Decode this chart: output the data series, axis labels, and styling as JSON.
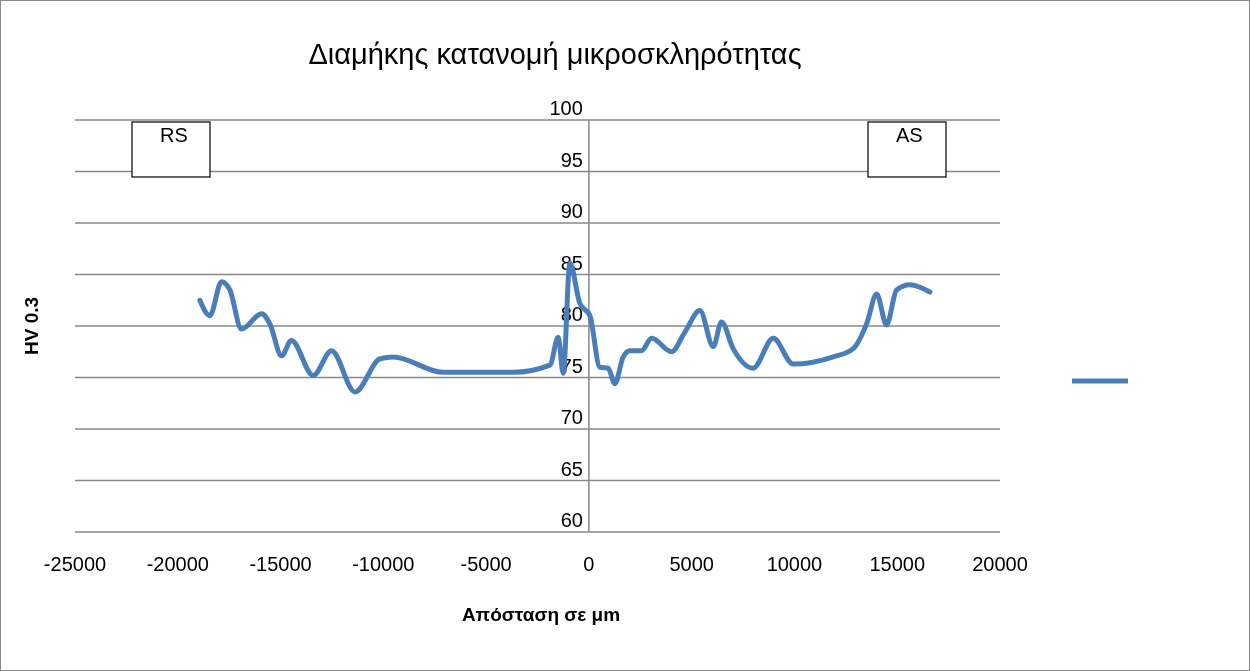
{
  "chart_data": {
    "type": "line",
    "title": "Διαμήκης κατανομή μικροσκληρότητας",
    "xlabel": "Απόσταση σε μm",
    "ylabel": "HV 0.3",
    "annotations": [
      "RS",
      "AS"
    ],
    "xlim": [
      -25000,
      20000
    ],
    "xticks": [
      -25000,
      -20000,
      -15000,
      -10000,
      -5000,
      0,
      5000,
      10000,
      15000,
      20000
    ],
    "ylim": [
      60,
      100
    ],
    "yticks": [
      60,
      65,
      70,
      75,
      80,
      85,
      90,
      95,
      100
    ],
    "grid": "y",
    "line_style": "solid",
    "marker": "none",
    "series": [
      {
        "color": "#4a7ebb",
        "x": [
          -18925,
          -18440,
          -17870,
          -17465,
          -16900,
          -15920,
          -15520,
          -14950,
          -14470,
          -13410,
          -12520,
          -11380,
          -10170,
          -9520,
          -7090,
          -3680,
          -1900,
          -1490,
          -1250,
          -925,
          -440,
          50,
          535,
          940,
          1265,
          1670,
          1995,
          2560,
          3050,
          4020,
          4670,
          5400,
          6050,
          6450,
          7020,
          7990,
          8970,
          9940,
          11890,
          12860,
          13510,
          14000,
          14480,
          14970,
          15620,
          16590
        ],
        "values": [
          82.5,
          81.0,
          84.3,
          83.5,
          79.7,
          81.2,
          80.2,
          77.1,
          78.6,
          75.2,
          77.6,
          73.6,
          76.8,
          77.0,
          75.5,
          75.5,
          76.2,
          78.9,
          75.4,
          86.1,
          82.2,
          81.0,
          76.0,
          75.9,
          74.4,
          77.0,
          77.6,
          77.6,
          78.8,
          77.5,
          79.4,
          81.5,
          78.0,
          80.4,
          77.8,
          75.9,
          78.8,
          76.3,
          77.0,
          77.8,
          80.2,
          83.1,
          80.1,
          83.5,
          84.0,
          83.3
        ]
      }
    ]
  }
}
